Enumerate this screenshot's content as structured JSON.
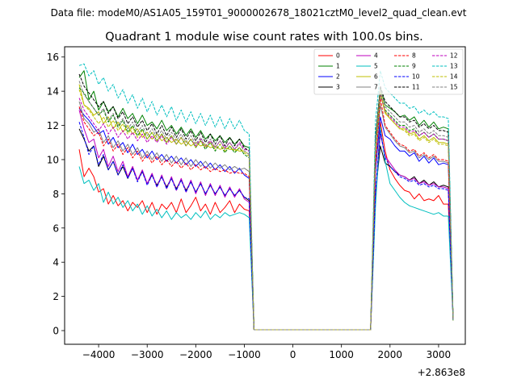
{
  "suptitle": "Data file: modeM0/AS1A05_159T01_9000002678_18021cztM0_level2_quad_clean.evt",
  "chart_data": {
    "type": "line",
    "title": "Quadrant 1 module wise count rates with 100.0s bins.",
    "xlabel": "",
    "ylabel": "",
    "x_offset_label": "+2.863e8",
    "xlim": [
      -4700,
      3550
    ],
    "ylim": [
      -0.8,
      16.6
    ],
    "xticks": [
      -4000,
      -3000,
      -2000,
      -1000,
      0,
      1000,
      2000,
      3000
    ],
    "xtick_labels": [
      "−4000",
      "−3000",
      "−2000",
      "−1000",
      "0",
      "1000",
      "2000",
      "3000"
    ],
    "yticks": [
      0,
      2,
      4,
      6,
      8,
      10,
      12,
      14,
      16
    ],
    "ytick_labels": [
      "0",
      "2",
      "4",
      "6",
      "8",
      "10",
      "12",
      "14",
      "16"
    ],
    "legend_position": "top-right",
    "x": [
      -4400,
      -4300,
      -4200,
      -4100,
      -4000,
      -3900,
      -3800,
      -3700,
      -3600,
      -3500,
      -3400,
      -3300,
      -3200,
      -3100,
      -3000,
      -2900,
      -2800,
      -2700,
      -2600,
      -2500,
      -2400,
      -2300,
      -2200,
      -2100,
      -2000,
      -1900,
      -1800,
      -1700,
      -1600,
      -1500,
      -1400,
      -1300,
      -1200,
      -1100,
      -1000,
      -900,
      -800,
      1600,
      1700,
      1800,
      1900,
      2000,
      2100,
      2200,
      2300,
      2400,
      2500,
      2600,
      2700,
      2800,
      2900,
      3000,
      3100,
      3200,
      3300
    ],
    "series": [
      {
        "name": "0",
        "color": "#ff0000",
        "dash": "solid",
        "values": [
          10.6,
          9.0,
          9.5,
          9.0,
          8.1,
          8.3,
          7.4,
          7.9,
          7.3,
          7.6,
          7.0,
          7.5,
          7.2,
          7.6,
          6.9,
          7.5,
          6.8,
          7.4,
          7.1,
          7.5,
          6.9,
          7.7,
          6.9,
          7.3,
          7.8,
          7.0,
          7.4,
          6.8,
          7.5,
          6.9,
          7.2,
          7.6,
          6.9,
          7.4,
          7.1,
          7.0,
          0.05,
          0.05,
          7.5,
          12.2,
          10.5,
          9.4,
          8.9,
          8.5,
          8.2,
          8.1,
          7.7,
          8.0,
          7.6,
          7.7,
          7.6,
          7.9,
          7.4,
          7.4,
          0.6
        ]
      },
      {
        "name": "1",
        "color": "#008000",
        "dash": "solid",
        "values": [
          14.8,
          15.2,
          13.5,
          14.0,
          12.9,
          13.4,
          12.8,
          13.1,
          12.5,
          13.0,
          12.4,
          12.7,
          12.1,
          12.6,
          12.0,
          12.2,
          11.8,
          12.3,
          11.7,
          12.0,
          11.5,
          11.9,
          11.4,
          11.8,
          11.3,
          11.7,
          11.2,
          11.5,
          11.1,
          11.4,
          11.0,
          11.3,
          10.9,
          11.2,
          10.8,
          10.7,
          0.05,
          0.05,
          11.3,
          14.2,
          13.2,
          13.0,
          12.8,
          12.5,
          12.6,
          12.3,
          12.5,
          12.0,
          12.3,
          11.9,
          12.2,
          11.8,
          11.9,
          11.8,
          0.6
        ]
      },
      {
        "name": "2",
        "color": "#0000ff",
        "dash": "solid",
        "values": [
          13.0,
          12.6,
          12.3,
          11.9,
          11.5,
          11.7,
          10.9,
          11.3,
          10.7,
          11.0,
          10.4,
          10.9,
          10.3,
          10.6,
          10.1,
          10.5,
          10.0,
          10.3,
          9.9,
          10.2,
          9.8,
          10.1,
          9.7,
          10.0,
          9.6,
          9.9,
          9.5,
          9.8,
          9.4,
          9.7,
          9.3,
          9.6,
          9.2,
          9.5,
          9.1,
          8.9,
          0.05,
          0.05,
          9.3,
          12.5,
          11.4,
          11.2,
          10.8,
          10.5,
          10.5,
          10.2,
          10.4,
          9.9,
          10.2,
          9.8,
          10.1,
          9.7,
          9.8,
          9.7,
          0.6
        ]
      },
      {
        "name": "3",
        "color": "#000000",
        "dash": "solid",
        "values": [
          11.8,
          11.2,
          10.5,
          10.8,
          9.6,
          10.2,
          9.4,
          9.9,
          9.1,
          9.6,
          8.9,
          9.5,
          8.8,
          9.3,
          8.6,
          9.1,
          8.5,
          9.0,
          8.4,
          8.9,
          8.3,
          8.8,
          8.2,
          8.7,
          8.1,
          8.6,
          8.0,
          8.5,
          8.0,
          8.4,
          7.9,
          8.3,
          7.9,
          8.2,
          7.8,
          7.6,
          0.05,
          0.05,
          8.0,
          10.8,
          9.8,
          9.6,
          9.3,
          9.1,
          9.0,
          8.8,
          9.0,
          8.6,
          8.8,
          8.5,
          8.7,
          8.4,
          8.5,
          8.4,
          0.6
        ]
      },
      {
        "name": "4",
        "color": "#bf00bf",
        "dash": "solid",
        "values": [
          12.9,
          11.8,
          11.0,
          11.2,
          10.1,
          10.6,
          9.6,
          10.2,
          9.3,
          9.9,
          9.0,
          9.6,
          8.8,
          9.4,
          8.6,
          9.2,
          8.4,
          9.1,
          8.3,
          9.0,
          8.2,
          8.9,
          8.1,
          8.8,
          8.0,
          8.7,
          7.9,
          8.6,
          7.9,
          8.5,
          7.8,
          8.4,
          7.8,
          8.3,
          7.7,
          7.5,
          0.05,
          0.05,
          7.9,
          11.5,
          10.2,
          9.8,
          9.4,
          9.1,
          9.0,
          8.8,
          8.9,
          8.6,
          8.7,
          8.5,
          8.6,
          8.4,
          8.4,
          8.3,
          0.6
        ]
      },
      {
        "name": "5",
        "color": "#00bfbf",
        "dash": "solid",
        "values": [
          9.6,
          8.6,
          8.8,
          8.2,
          8.6,
          7.5,
          8.1,
          7.4,
          7.8,
          7.2,
          7.6,
          7.0,
          7.4,
          6.8,
          7.3,
          6.7,
          7.1,
          6.6,
          7.0,
          6.5,
          6.9,
          6.6,
          6.8,
          6.5,
          6.9,
          6.6,
          7.0,
          6.5,
          6.8,
          6.6,
          6.9,
          6.7,
          6.8,
          6.9,
          6.8,
          6.6,
          0.05,
          0.05,
          7.2,
          11.9,
          9.9,
          8.6,
          8.2,
          7.8,
          7.5,
          7.3,
          7.2,
          7.1,
          7.0,
          6.9,
          6.8,
          6.9,
          6.7,
          6.7,
          0.6
        ]
      },
      {
        "name": "6",
        "color": "#bfbf00",
        "dash": "solid",
        "values": [
          14.4,
          13.2,
          13.0,
          12.6,
          12.8,
          12.1,
          12.5,
          11.8,
          12.2,
          11.6,
          12.0,
          11.5,
          11.8,
          11.3,
          11.6,
          11.2,
          11.5,
          11.1,
          11.3,
          11.0,
          11.2,
          10.9,
          11.1,
          10.8,
          11.0,
          10.8,
          10.9,
          10.7,
          10.8,
          10.6,
          10.7,
          10.6,
          10.6,
          10.5,
          10.5,
          10.3,
          0.05,
          0.05,
          10.9,
          13.9,
          12.7,
          12.4,
          12.1,
          11.8,
          11.8,
          11.5,
          11.6,
          11.2,
          11.4,
          11.1,
          11.3,
          11.0,
          11.0,
          10.9,
          0.6
        ]
      },
      {
        "name": "7",
        "color": "#808080",
        "dash": "solid",
        "values": [
          13.4,
          12.4,
          12.1,
          11.6,
          11.8,
          11.0,
          11.4,
          10.7,
          11.1,
          10.5,
          10.9,
          10.3,
          10.7,
          10.1,
          10.5,
          10.0,
          10.4,
          9.9,
          10.3,
          9.8,
          10.2,
          9.7,
          10.1,
          9.6,
          10.0,
          9.6,
          9.9,
          9.5,
          9.8,
          9.5,
          9.7,
          9.4,
          9.6,
          9.4,
          9.5,
          9.3,
          0.05,
          0.05,
          9.8,
          13.2,
          11.9,
          11.5,
          11.1,
          10.8,
          10.7,
          10.4,
          10.5,
          10.1,
          10.3,
          10.0,
          10.2,
          9.9,
          9.9,
          9.8,
          0.6
        ]
      },
      {
        "name": "8",
        "color": "#ff0000",
        "dash": "dashed",
        "values": [
          13.1,
          12.2,
          11.8,
          11.4,
          11.6,
          10.8,
          11.2,
          10.5,
          10.9,
          10.3,
          10.7,
          10.1,
          10.5,
          9.9,
          10.3,
          9.8,
          10.2,
          9.7,
          10.0,
          9.6,
          9.9,
          9.5,
          9.8,
          9.4,
          9.7,
          9.4,
          9.6,
          9.3,
          9.5,
          9.3,
          9.4,
          9.2,
          9.3,
          9.2,
          9.2,
          9.0,
          0.05,
          0.05,
          9.6,
          13.6,
          12.0,
          11.6,
          11.2,
          10.9,
          10.8,
          10.5,
          10.6,
          10.2,
          10.4,
          10.1,
          10.3,
          10.0,
          10.0,
          9.9,
          0.6
        ]
      },
      {
        "name": "9",
        "color": "#008000",
        "dash": "dashed",
        "values": [
          14.2,
          13.9,
          13.4,
          13.0,
          12.6,
          12.9,
          12.2,
          12.6,
          11.9,
          12.3,
          11.6,
          12.0,
          11.4,
          11.8,
          11.2,
          11.6,
          11.1,
          11.5,
          11.0,
          11.4,
          10.9,
          11.3,
          10.8,
          11.2,
          10.7,
          11.1,
          10.6,
          11.0,
          10.5,
          10.9,
          10.4,
          10.8,
          10.4,
          10.7,
          10.3,
          10.1,
          0.05,
          0.05,
          10.6,
          13.8,
          12.9,
          12.6,
          12.3,
          12.0,
          12.0,
          11.7,
          11.8,
          11.4,
          11.6,
          11.3,
          11.5,
          11.2,
          11.2,
          11.1,
          0.6
        ]
      },
      {
        "name": "10",
        "color": "#0000ff",
        "dash": "dashed",
        "values": [
          12.2,
          11.3,
          10.3,
          10.8,
          9.7,
          10.3,
          9.4,
          9.9,
          9.1,
          9.7,
          8.9,
          9.5,
          8.7,
          9.3,
          8.5,
          9.1,
          8.4,
          9.0,
          8.3,
          8.9,
          8.2,
          8.8,
          8.1,
          8.7,
          8.1,
          8.6,
          8.0,
          8.5,
          8.0,
          8.4,
          7.9,
          8.3,
          7.9,
          8.2,
          7.8,
          7.7,
          0.05,
          0.05,
          8.1,
          11.7,
          10.1,
          9.6,
          9.3,
          9.0,
          8.9,
          8.7,
          8.8,
          8.5,
          8.6,
          8.4,
          8.5,
          8.3,
          8.3,
          8.2,
          0.6
        ]
      },
      {
        "name": "11",
        "color": "#000000",
        "dash": "dashed",
        "values": [
          15.0,
          14.3,
          13.9,
          13.5,
          13.1,
          13.4,
          12.7,
          13.1,
          12.4,
          12.8,
          12.1,
          12.5,
          11.9,
          12.3,
          11.7,
          12.1,
          11.5,
          12.0,
          11.4,
          11.9,
          11.3,
          11.8,
          11.2,
          11.7,
          11.1,
          11.6,
          11.0,
          11.5,
          10.9,
          11.4,
          10.8,
          11.3,
          10.8,
          11.2,
          10.7,
          10.5,
          0.05,
          0.05,
          11.1,
          14.3,
          13.4,
          13.1,
          12.8,
          12.5,
          12.5,
          12.2,
          12.3,
          11.9,
          12.1,
          11.8,
          12.0,
          11.7,
          11.7,
          11.6,
          0.6
        ]
      },
      {
        "name": "12",
        "color": "#bf00bf",
        "dash": "dashed",
        "values": [
          13.6,
          12.9,
          12.5,
          12.1,
          11.7,
          12.1,
          11.5,
          11.9,
          11.3,
          11.7,
          11.2,
          11.6,
          11.1,
          11.5,
          11.0,
          11.4,
          11.0,
          11.4,
          10.9,
          11.3,
          10.9,
          11.3,
          10.8,
          11.2,
          10.8,
          11.2,
          10.7,
          11.1,
          10.7,
          11.1,
          10.7,
          11.0,
          10.6,
          11.0,
          10.6,
          10.5,
          0.05,
          0.05,
          11.0,
          13.9,
          12.8,
          12.5,
          12.2,
          11.9,
          11.9,
          11.6,
          11.7,
          11.4,
          11.6,
          11.3,
          11.5,
          11.2,
          11.2,
          11.1,
          0.6
        ]
      },
      {
        "name": "13",
        "color": "#00bfbf",
        "dash": "dashed",
        "values": [
          15.5,
          15.6,
          14.9,
          15.2,
          14.4,
          14.8,
          14.0,
          14.4,
          13.6,
          14.1,
          13.3,
          13.8,
          13.0,
          13.6,
          12.8,
          13.4,
          12.6,
          13.2,
          12.5,
          13.1,
          12.3,
          12.9,
          12.2,
          12.8,
          12.1,
          12.7,
          12.0,
          12.6,
          11.9,
          12.5,
          11.8,
          12.4,
          11.8,
          12.3,
          11.7,
          11.5,
          0.05,
          0.05,
          12.2,
          15.2,
          14.2,
          13.9,
          13.6,
          13.3,
          13.3,
          13.0,
          13.1,
          12.7,
          12.9,
          12.6,
          12.8,
          12.5,
          12.5,
          12.4,
          0.6
        ]
      },
      {
        "name": "14",
        "color": "#bfbf00",
        "dash": "dashed",
        "values": [
          14.1,
          13.2,
          12.9,
          12.5,
          12.1,
          12.5,
          11.9,
          12.3,
          11.7,
          12.1,
          11.5,
          11.9,
          11.3,
          11.7,
          11.2,
          11.6,
          11.1,
          11.5,
          11.0,
          11.4,
          10.9,
          11.3,
          10.8,
          11.2,
          10.7,
          11.1,
          10.7,
          11.0,
          10.6,
          10.9,
          10.5,
          10.8,
          10.5,
          10.7,
          10.4,
          10.2,
          0.05,
          0.05,
          10.7,
          14.0,
          12.8,
          12.4,
          12.1,
          11.8,
          11.7,
          11.4,
          11.5,
          11.1,
          11.3,
          11.0,
          11.2,
          10.9,
          10.9,
          10.8,
          0.6
        ]
      },
      {
        "name": "15",
        "color": "#808080",
        "dash": "dashed",
        "values": [
          14.6,
          13.8,
          13.4,
          13.0,
          12.6,
          13.0,
          12.3,
          12.7,
          12.0,
          12.4,
          11.8,
          12.2,
          11.6,
          12.0,
          11.4,
          11.8,
          11.3,
          11.7,
          11.2,
          11.6,
          11.1,
          11.5,
          11.0,
          11.4,
          10.9,
          11.3,
          10.8,
          11.2,
          10.7,
          11.1,
          10.6,
          11.0,
          10.6,
          10.9,
          10.5,
          10.3,
          0.05,
          0.05,
          10.9,
          14.1,
          13.1,
          12.8,
          12.5,
          12.2,
          12.2,
          11.9,
          12.0,
          11.6,
          11.8,
          11.5,
          11.7,
          11.4,
          11.4,
          11.3,
          0.6
        ]
      }
    ]
  }
}
